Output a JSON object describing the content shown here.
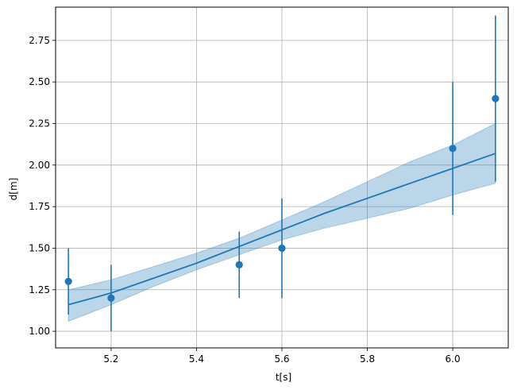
{
  "chart_data": {
    "type": "scatter",
    "title": "",
    "xlabel": "t[s]",
    "ylabel": "d[m]",
    "xlim": [
      5.07,
      6.13
    ],
    "ylim": [
      0.9,
      2.95
    ],
    "grid": true,
    "legend": "none",
    "x_ticks": [
      "5.2",
      "5.4",
      "5.6",
      "5.8",
      "6.0"
    ],
    "y_ticks": [
      "1.00",
      "1.25",
      "1.50",
      "1.75",
      "2.00",
      "2.25",
      "2.50",
      "2.75"
    ],
    "color": "#1f77b4",
    "band_color": "#1f77b4",
    "series": [
      {
        "kind": "errorbar-points",
        "x": [
          5.1,
          5.2,
          5.5,
          5.6,
          6.0,
          6.1
        ],
        "y": [
          1.3,
          1.2,
          1.4,
          1.5,
          2.1,
          2.4
        ],
        "yerr": [
          0.2,
          0.2,
          0.2,
          0.3,
          0.4,
          0.5
        ]
      },
      {
        "kind": "fit-line",
        "x": [
          5.1,
          5.2,
          5.3,
          5.4,
          5.5,
          5.6,
          5.7,
          5.8,
          5.9,
          6.0,
          6.1
        ],
        "y": [
          1.16,
          1.23,
          1.32,
          1.41,
          1.51,
          1.61,
          1.71,
          1.8,
          1.89,
          1.98,
          2.07
        ]
      },
      {
        "kind": "confidence-band",
        "x": [
          5.1,
          5.2,
          5.3,
          5.4,
          5.5,
          5.6,
          5.7,
          5.8,
          5.9,
          6.0,
          6.1
        ],
        "lower": [
          1.06,
          1.16,
          1.27,
          1.37,
          1.46,
          1.55,
          1.62,
          1.68,
          1.74,
          1.82,
          1.89
        ],
        "upper": [
          1.25,
          1.31,
          1.39,
          1.47,
          1.56,
          1.67,
          1.78,
          1.9,
          2.02,
          2.12,
          2.25
        ]
      }
    ]
  }
}
